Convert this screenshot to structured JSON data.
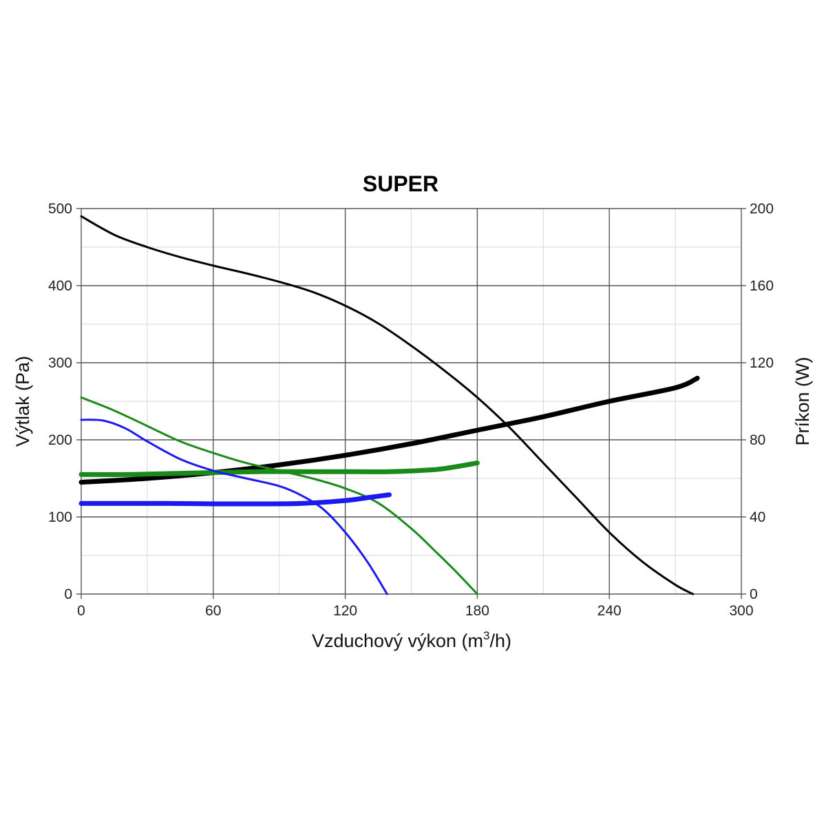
{
  "chart_data": {
    "type": "line",
    "title": "SUPER",
    "xlabel": {
      "main": "Vzduchový výkon (m",
      "sup": "3",
      "tail": "/h)"
    },
    "ylabel_left": "Výtlak (Pa)",
    "ylabel_right": "Príkon (W)",
    "xlim": [
      0,
      300
    ],
    "ylim_left": [
      0,
      500
    ],
    "ylim_right": [
      0,
      200
    ],
    "x_ticks": [
      0,
      60,
      120,
      180,
      240,
      300
    ],
    "y_ticks_left": [
      0,
      100,
      200,
      300,
      400,
      500
    ],
    "y_ticks_right": [
      0,
      40,
      80,
      120,
      160,
      200
    ],
    "x_minor_ticks": [
      30,
      90,
      150,
      210,
      270
    ],
    "y_minor_ticks_left": [
      50,
      150,
      250,
      350,
      450
    ],
    "grid": true,
    "colors": {
      "black": "#000000",
      "green": "#1a8a1a",
      "blue": "#1a1aee",
      "major_grid": "#555555",
      "minor_grid": "#dddddd"
    },
    "series": [
      {
        "axis": "left",
        "color": "black",
        "weight": "thin",
        "x": [
          0,
          15,
          30,
          45,
          60,
          75,
          90,
          105,
          120,
          135,
          150,
          165,
          180,
          195,
          210,
          225,
          240,
          255,
          270,
          278
        ],
        "y": [
          490,
          466,
          450,
          437,
          426,
          416,
          405,
          392,
          374,
          351,
          322,
          290,
          255,
          215,
          170,
          125,
          80,
          42,
          12,
          0
        ]
      },
      {
        "axis": "right",
        "color": "black",
        "weight": "thick",
        "x": [
          0,
          30,
          60,
          90,
          120,
          150,
          180,
          210,
          240,
          270,
          280
        ],
        "y": [
          58,
          60,
          63,
          67,
          72,
          78,
          85,
          92,
          100,
          107,
          112
        ]
      },
      {
        "axis": "left",
        "color": "green",
        "weight": "thin",
        "x": [
          0,
          15,
          30,
          45,
          60,
          75,
          90,
          105,
          120,
          135,
          150,
          160,
          170,
          180
        ],
        "y": [
          255,
          238,
          218,
          198,
          183,
          170,
          160,
          150,
          137,
          118,
          85,
          58,
          30,
          0
        ]
      },
      {
        "axis": "right",
        "color": "green",
        "weight": "thick",
        "x": [
          0,
          20,
          40,
          60,
          80,
          100,
          120,
          140,
          160,
          170,
          180
        ],
        "y": [
          62,
          62,
          62.5,
          63,
          63.5,
          63.5,
          63.5,
          63.5,
          64.5,
          66,
          68
        ]
      },
      {
        "axis": "left",
        "color": "blue",
        "weight": "thin",
        "x": [
          0,
          10,
          20,
          30,
          45,
          60,
          75,
          90,
          100,
          110,
          120,
          130,
          139
        ],
        "y": [
          226,
          225,
          215,
          198,
          175,
          160,
          150,
          140,
          128,
          110,
          80,
          42,
          0
        ]
      },
      {
        "axis": "right",
        "color": "blue",
        "weight": "thick",
        "x": [
          0,
          20,
          40,
          60,
          80,
          100,
          120,
          130,
          140
        ],
        "y": [
          47,
          47,
          47,
          46.8,
          46.8,
          47,
          48.5,
          50,
          51.5
        ]
      }
    ]
  }
}
